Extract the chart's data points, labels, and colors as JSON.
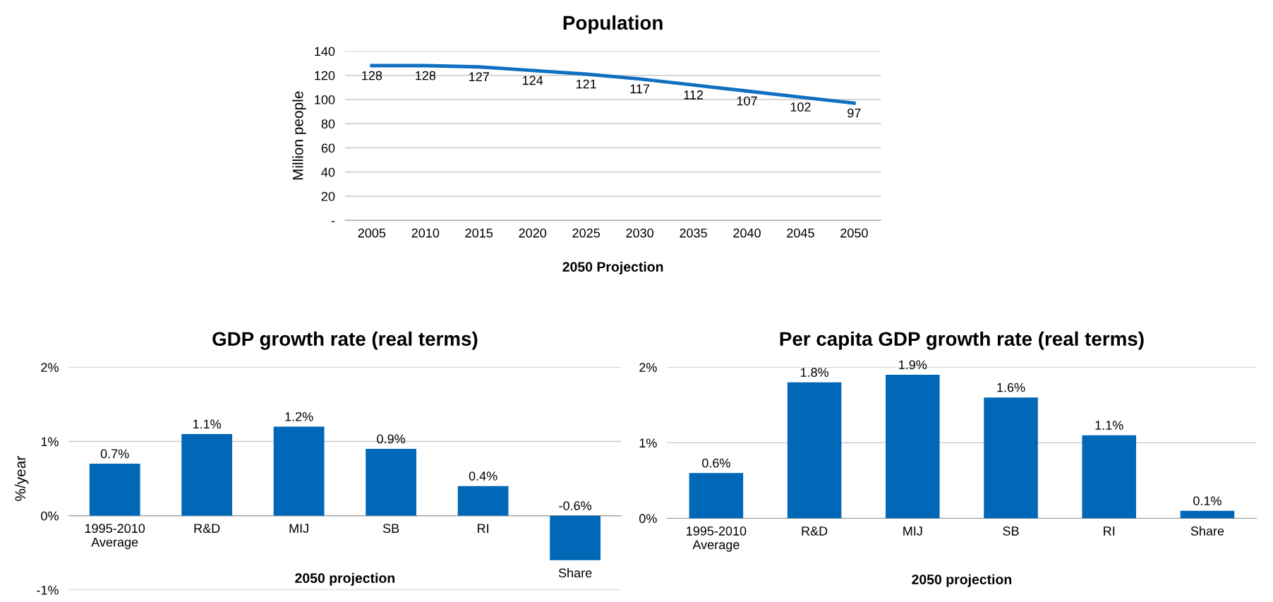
{
  "chart_data": [
    {
      "type": "line",
      "title": "Population",
      "xlabel": "2050 Projection",
      "ylabel": "Million people",
      "categories": [
        "2005",
        "2010",
        "2015",
        "2020",
        "2025",
        "2030",
        "2035",
        "2040",
        "2045",
        "2050"
      ],
      "series": [
        {
          "color": "#0f6fc0",
          "values": [
            128,
            128,
            127,
            124,
            121,
            117,
            112,
            107,
            102,
            97
          ]
        }
      ],
      "ylim": [
        0,
        140
      ],
      "yticks": [
        {
          "value": 0,
          "label": "-"
        },
        20,
        40,
        60,
        80,
        100,
        120,
        140
      ],
      "grid": "y",
      "data_labels": true,
      "marker": "none",
      "line_style": "solid"
    },
    {
      "type": "bar",
      "title": "GDP growth rate (real terms)",
      "xlabel": "2050 projection",
      "ylabel": "%/year",
      "categories": [
        "1995-2010\nAverage",
        "R&D",
        "MIJ",
        "SB",
        "RI",
        "Share"
      ],
      "series": [
        {
          "color": "#0068b7",
          "values": [
            0.7,
            1.1,
            1.2,
            0.9,
            0.4,
            -0.6
          ],
          "value_labels": [
            "0.7%",
            "1.1%",
            "1.2%",
            "0.9%",
            "0.4%",
            "-0.6%"
          ]
        }
      ],
      "ylim": [
        -1,
        2
      ],
      "yticks": [
        {
          "value": -1,
          "label": "-1%"
        },
        {
          "value": 0,
          "label": "0%"
        },
        {
          "value": 1,
          "label": "1%"
        },
        {
          "value": 2,
          "label": "2%"
        }
      ],
      "grid": "y"
    },
    {
      "type": "bar",
      "title": "Per capita GDP growth rate (real terms)",
      "xlabel": "2050 projection",
      "categories": [
        "1995-2010\nAverage",
        "R&D",
        "MIJ",
        "SB",
        "RI",
        "Share"
      ],
      "series": [
        {
          "color": "#0068b7",
          "values": [
            0.6,
            1.8,
            1.9,
            1.6,
            1.1,
            0.1
          ],
          "value_labels": [
            "0.6%",
            "1.8%",
            "1.9%",
            "1.6%",
            "1.1%",
            "0.1%"
          ]
        }
      ],
      "ylim": [
        0,
        2
      ],
      "yticks": [
        {
          "value": 0,
          "label": "0%"
        },
        {
          "value": 1,
          "label": "1%"
        },
        {
          "value": 2,
          "label": "2%"
        }
      ],
      "grid": "y"
    }
  ]
}
